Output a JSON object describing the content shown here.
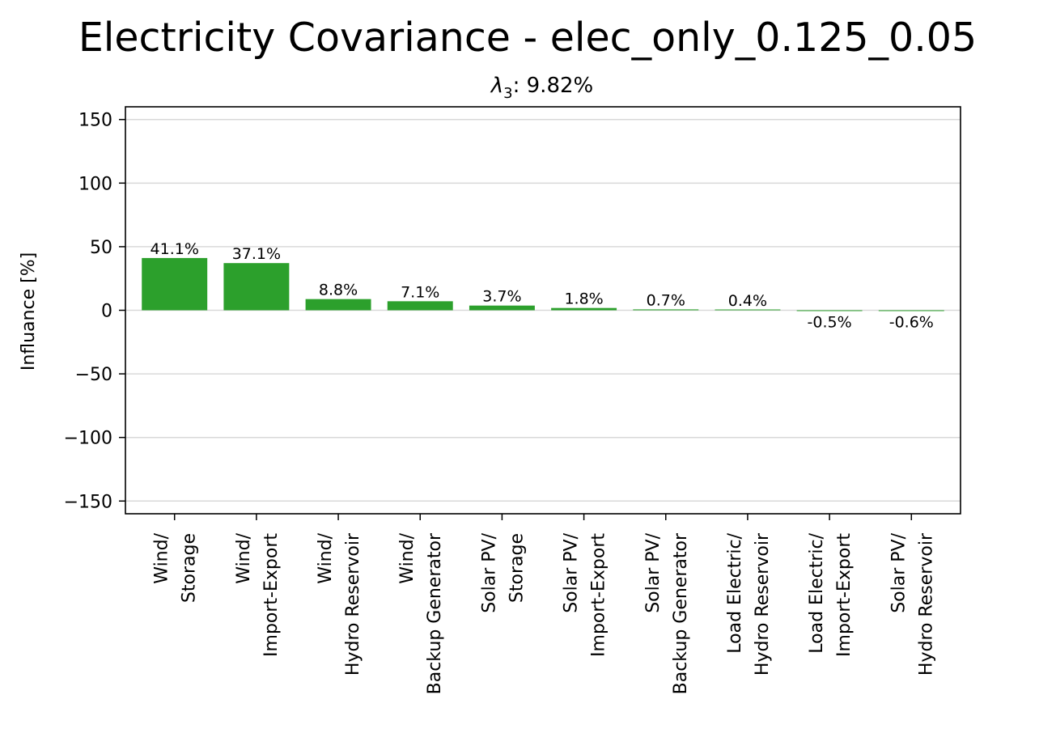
{
  "chart_data": {
    "type": "bar",
    "title": "Electricity Covariance - elec_only_0.125_0.05",
    "subtitle": {
      "symbol": "λ",
      "subscript": "3",
      "text": ": 9.82%"
    },
    "xlabel": "",
    "ylabel": "Influance [%]",
    "ylim": [
      -160,
      160
    ],
    "yticks": [
      -150,
      -100,
      -50,
      0,
      50,
      100,
      150
    ],
    "ytick_labels": [
      "−150",
      "−100",
      "−50",
      "0",
      "50",
      "100",
      "150"
    ],
    "grid": "horizontal",
    "bar_color": "#2ca02c",
    "categories": [
      [
        "Wind/",
        "Storage"
      ],
      [
        "Wind/",
        "Import-Export"
      ],
      [
        "Wind/",
        "Hydro Reservoir"
      ],
      [
        "Wind/",
        "Backup Generator"
      ],
      [
        "Solar PV/",
        "Storage"
      ],
      [
        "Solar PV/",
        "Import-Export"
      ],
      [
        "Solar PV/",
        "Backup Generator"
      ],
      [
        "Load Electric/",
        "Hydro Reservoir"
      ],
      [
        "Load Electric/",
        "Import-Export"
      ],
      [
        "Solar PV/",
        "Hydro Reservoir"
      ]
    ],
    "values": [
      41.1,
      37.1,
      8.8,
      7.1,
      3.7,
      1.8,
      0.7,
      0.4,
      -0.5,
      -0.6
    ],
    "value_labels": [
      "41.1%",
      "37.1%",
      "8.8%",
      "7.1%",
      "3.7%",
      "1.8%",
      "0.7%",
      "0.4%",
      "-0.5%",
      "-0.6%"
    ]
  }
}
